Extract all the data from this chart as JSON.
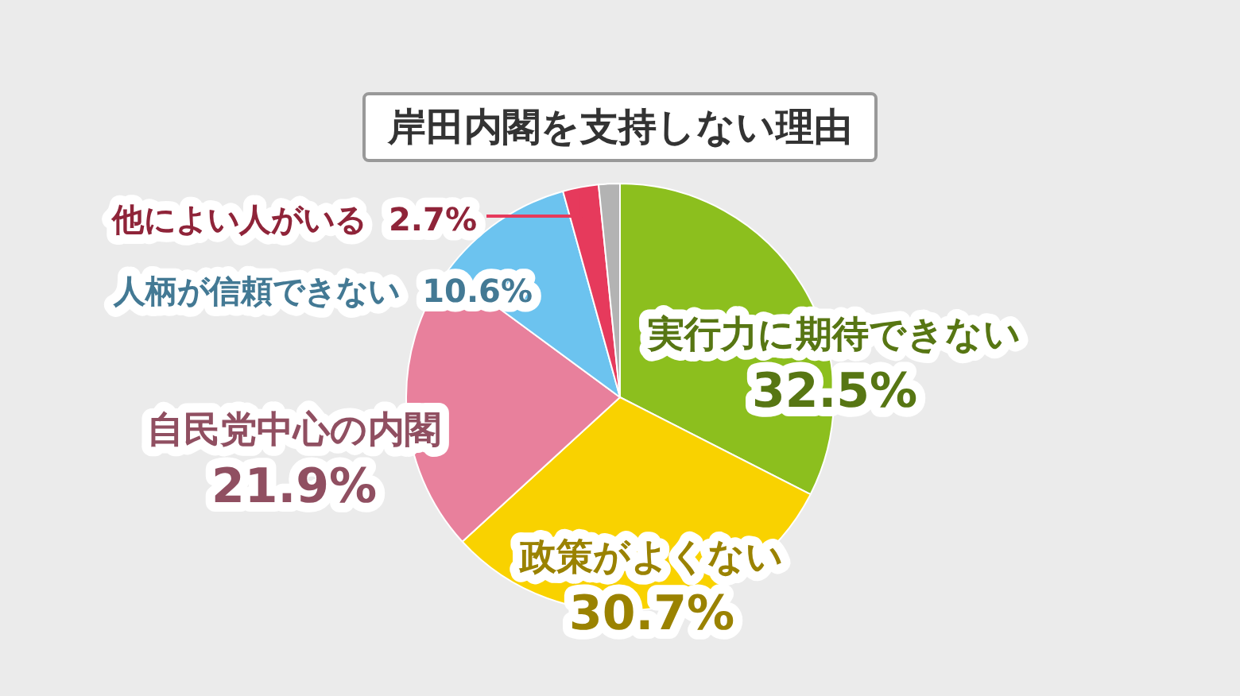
{
  "chart_data": {
    "type": "pie",
    "title": "岸田内閣を支持しない理由",
    "categories": [
      "実行力に期待できない",
      "政策がよくない",
      "自民党中心の内閣",
      "人柄が信頼できない",
      "他によい人がいる",
      null
    ],
    "values": [
      32.5,
      30.7,
      21.9,
      10.6,
      2.7,
      1.6
    ],
    "value_labels": [
      "32.5%",
      "30.7%",
      "21.9%",
      "10.6%",
      "2.7%",
      null
    ],
    "colors": [
      "#8cbf1e",
      "#f9d200",
      "#e8809c",
      "#6cc3ef",
      "#e63a5c",
      "#b3b3b3"
    ],
    "legend": false
  }
}
